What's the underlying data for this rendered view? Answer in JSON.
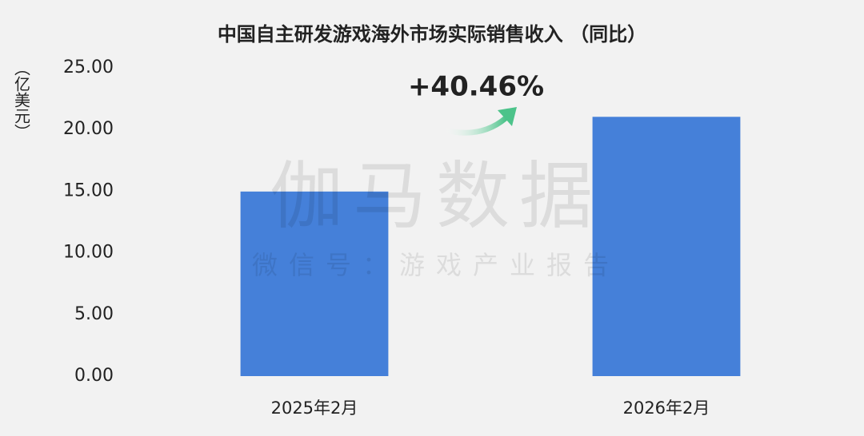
{
  "chart_data": {
    "type": "bar",
    "title": "中国自主研发游戏海外市场实际销售收入 （同比）",
    "y_label": "（亿美元）",
    "annotation": "+40.46%",
    "watermark": [
      "伽马数据",
      "微信号：游戏产业报告"
    ],
    "categories": [
      "2025年2月",
      "2026年2月"
    ],
    "values": [
      14.97,
      21.03
    ],
    "color": "#4580d9",
    "ylim": [
      0,
      25
    ],
    "yticks": [
      {
        "value": 0,
        "label": "0.00"
      },
      {
        "value": 5,
        "label": "5.00"
      },
      {
        "value": 10,
        "label": "10.00"
      },
      {
        "value": 15,
        "label": "15.00"
      },
      {
        "value": 20,
        "label": "20.00"
      },
      {
        "value": 25,
        "label": "25.00"
      }
    ],
    "grid": false
  }
}
